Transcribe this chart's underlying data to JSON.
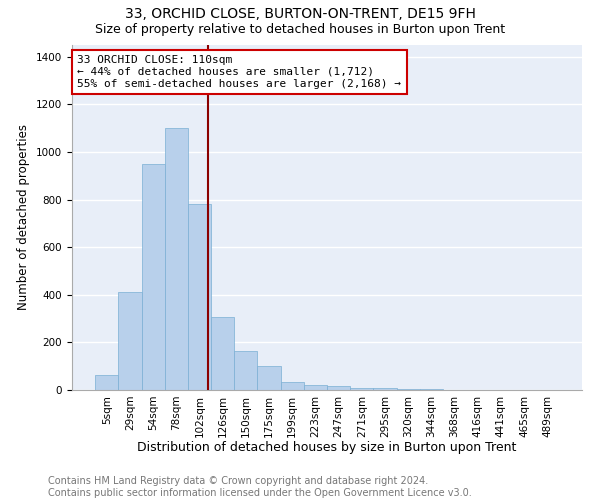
{
  "title": "33, ORCHID CLOSE, BURTON-ON-TRENT, DE15 9FH",
  "subtitle": "Size of property relative to detached houses in Burton upon Trent",
  "xlabel": "Distribution of detached houses by size in Burton upon Trent",
  "ylabel": "Number of detached properties",
  "footer": "Contains HM Land Registry data © Crown copyright and database right 2024.\nContains public sector information licensed under the Open Government Licence v3.0.",
  "bar_labels": [
    "5sqm",
    "29sqm",
    "54sqm",
    "78sqm",
    "102sqm",
    "126sqm",
    "150sqm",
    "175sqm",
    "199sqm",
    "223sqm",
    "247sqm",
    "271sqm",
    "295sqm",
    "320sqm",
    "344sqm",
    "368sqm",
    "416sqm",
    "441sqm",
    "465sqm",
    "489sqm"
  ],
  "bar_heights": [
    65,
    410,
    950,
    1100,
    780,
    305,
    165,
    100,
    35,
    20,
    15,
    10,
    10,
    5,
    3,
    2,
    2,
    1,
    1,
    1
  ],
  "bar_color": "#b8d0eb",
  "bar_edge_color": "#7aafd4",
  "bg_color": "#e8eef8",
  "grid_color": "#ffffff",
  "vline_x": 4.35,
  "vline_color": "#8b0000",
  "annotation_text": "33 ORCHID CLOSE: 110sqm\n← 44% of detached houses are smaller (1,712)\n55% of semi-detached houses are larger (2,168) →",
  "annotation_box_color": "#cc0000",
  "ylim": [
    0,
    1450
  ],
  "yticks": [
    0,
    200,
    400,
    600,
    800,
    1000,
    1200,
    1400
  ],
  "title_fontsize": 10,
  "subtitle_fontsize": 9,
  "xlabel_fontsize": 9,
  "ylabel_fontsize": 8.5,
  "footer_fontsize": 7,
  "tick_fontsize": 7.5,
  "annot_fontsize": 8
}
